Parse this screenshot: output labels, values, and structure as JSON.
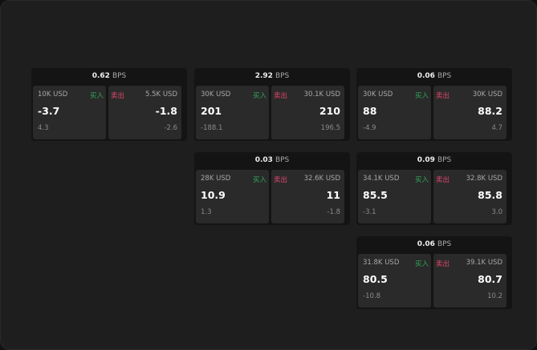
{
  "colors": {
    "buy": "#2fa65a",
    "sell": "#e0456e"
  },
  "unit": "BPS",
  "buy_label": "买入",
  "sell_label": "卖出",
  "cards": [
    {
      "spread": "0.62",
      "buy": {
        "qty": "10K USD",
        "price": "-3.7",
        "change": "4.3"
      },
      "sell": {
        "qty": "5.5K USD",
        "price": "-1.8",
        "change": "-2.6"
      }
    },
    {
      "spread": "2.92",
      "buy": {
        "qty": "30K USD",
        "price": "201",
        "change": "-188.1"
      },
      "sell": {
        "qty": "30.1K USD",
        "price": "210",
        "change": "196.5"
      }
    },
    {
      "spread": "0.06",
      "buy": {
        "qty": "30K USD",
        "price": "88",
        "change": "-4.9"
      },
      "sell": {
        "qty": "30K USD",
        "price": "88.2",
        "change": "4.7"
      }
    },
    {
      "spread": "0.03",
      "buy": {
        "qty": "28K USD",
        "price": "10.9",
        "change": "1.3"
      },
      "sell": {
        "qty": "32.6K USD",
        "price": "11",
        "change": "-1.8"
      }
    },
    {
      "spread": "0.09",
      "buy": {
        "qty": "34.1K USD",
        "price": "85.5",
        "change": "-3.1"
      },
      "sell": {
        "qty": "32.8K USD",
        "price": "85.8",
        "change": "3.0"
      }
    },
    {
      "spread": "0.06",
      "buy": {
        "qty": "31.8K USD",
        "price": "80.5",
        "change": "-10.8"
      },
      "sell": {
        "qty": "39.1K USD",
        "price": "80.7",
        "change": "10.2"
      }
    }
  ]
}
